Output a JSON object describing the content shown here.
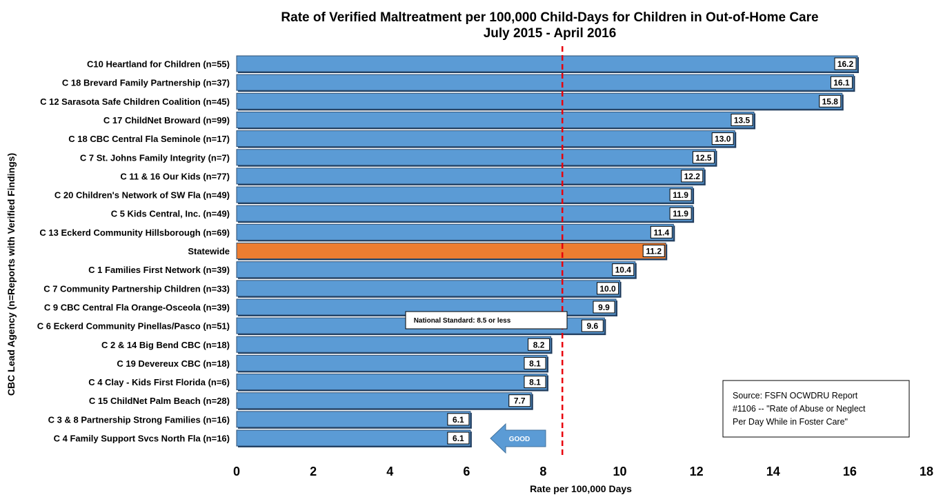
{
  "chart_data": {
    "type": "bar",
    "orientation": "horizontal",
    "title": "Rate of Verified Maltreatment per 100,000 Child-Days for Children in Out-of-Home Care",
    "subtitle": "July 2015 - April 2016",
    "xlabel": "Rate per 100,000 Days",
    "ylabel": "CBC Lead Agency (n=Reports with Verified Findings)",
    "xlim": [
      0,
      18
    ],
    "x_ticks": [
      0,
      2,
      4,
      6,
      8,
      10,
      12,
      14,
      16,
      18
    ],
    "grid": false,
    "categories": [
      "C10 Heartland for Children (n=55)",
      "C 18 Brevard Family Partnership (n=37)",
      "C 12 Sarasota Safe Children Coalition (n=45)",
      "C 17 ChildNet Broward (n=99)",
      "C 18 CBC Central Fla Seminole (n=17)",
      "C 7 St. Johns Family Integrity (n=7)",
      "C 11 & 16 Our Kids (n=77)",
      "C 20 Children's Network of SW Fla (n=49)",
      "C 5 Kids Central, Inc. (n=49)",
      "C 13 Eckerd Community Hillsborough (n=69)",
      "Statewide",
      "C 1 Families First Network (n=39)",
      "C 7 Community Partnership Children (n=33)",
      "C 9 CBC Central Fla Orange-Osceola (n=39)",
      "C 6 Eckerd Community Pinellas/Pasco (n=51)",
      "C 2 & 14 Big Bend CBC (n=18)",
      "C 19 Devereux CBC (n=18)",
      "C 4 Clay - Kids First Florida (n=6)",
      "C 15 ChildNet Palm Beach (n=28)",
      "C 3 & 8 Partnership Strong Families (n=16)",
      "C 4 Family Support Svcs North Fla (n=16)"
    ],
    "values": [
      16.2,
      16.1,
      15.8,
      13.5,
      13.0,
      12.5,
      12.2,
      11.9,
      11.9,
      11.4,
      11.2,
      10.4,
      10.0,
      9.9,
      9.6,
      8.2,
      8.1,
      8.1,
      7.7,
      6.1,
      6.1
    ],
    "data_labels": [
      "16.2",
      "16.1",
      "15.8",
      "13.5",
      "13.0",
      "12.5",
      "12.2",
      "11.9",
      "11.9",
      "11.4",
      "11.2",
      "10.4",
      "10.0",
      "9.9",
      "9.6",
      "8.2",
      "8.1",
      "8.1",
      "7.7",
      "6.1",
      "6.1"
    ],
    "highlight_category": "Statewide",
    "colors": {
      "bar": "#5b9bd5",
      "highlight": "#ed7d31",
      "reference_line": "#e8000b",
      "arrow": "#5b9bd5"
    },
    "reference_line": {
      "value": 8.5,
      "label": "National Standard: 8.5 or less"
    },
    "annotations": {
      "arrow_label": "GOOD",
      "source_lines": [
        "Source: FSFN OCWDRU Report",
        "#1106 -- \"Rate of Abuse or Neglect",
        "Per Day While in Foster Care\""
      ]
    }
  }
}
